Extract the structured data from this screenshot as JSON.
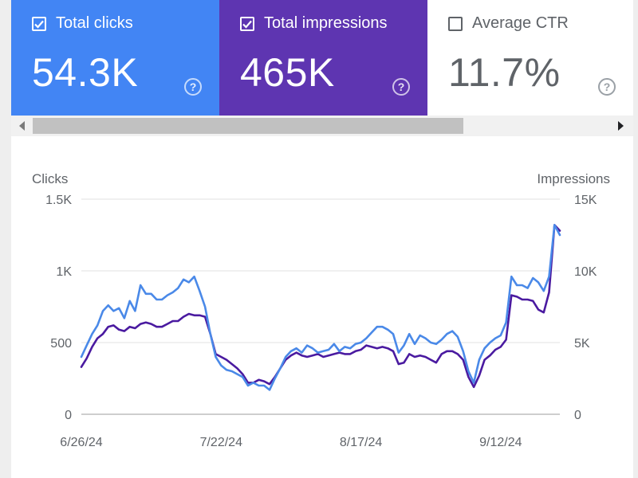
{
  "cards": [
    {
      "label": "Total clicks",
      "value": "54.3K",
      "checked": true,
      "color": "#4285f4"
    },
    {
      "label": "Total impressions",
      "value": "465K",
      "checked": true,
      "color": "#5e35b1"
    },
    {
      "label": "Average CTR",
      "value": "11.7%",
      "checked": false,
      "color": "#ffffff"
    }
  ],
  "help_symbol": "?",
  "chart_data": {
    "type": "line",
    "left_axis_label": "Clicks",
    "right_axis_label": "Impressions",
    "left_ticks": [
      "0",
      "500",
      "1K",
      "1.5K"
    ],
    "right_ticks": [
      "0",
      "5K",
      "10K",
      "15K"
    ],
    "x_tick_labels": [
      "6/26/24",
      "7/22/24",
      "8/17/24",
      "9/12/24"
    ],
    "x_tick_index": [
      0,
      26,
      52,
      78
    ],
    "ylim_left": [
      0,
      1500
    ],
    "ylim_right": [
      0,
      15000
    ],
    "grid": true,
    "series": [
      {
        "axis": "left",
        "color": "#4a89e8",
        "values": [
          400,
          480,
          560,
          620,
          720,
          760,
          720,
          740,
          670,
          790,
          720,
          900,
          840,
          840,
          800,
          800,
          830,
          850,
          880,
          940,
          920,
          960,
          860,
          750,
          560,
          400,
          340,
          310,
          300,
          280,
          260,
          200,
          220,
          200,
          200,
          170,
          250,
          320,
          400,
          440,
          460,
          430,
          480,
          460,
          430,
          440,
          450,
          490,
          440,
          470,
          460,
          490,
          500,
          530,
          570,
          610,
          610,
          590,
          560,
          430,
          480,
          560,
          490,
          550,
          530,
          500,
          490,
          520,
          560,
          580,
          540,
          440,
          300,
          220,
          380,
          460,
          500,
          530,
          550,
          640,
          960,
          900,
          900,
          880,
          950,
          920,
          860,
          960,
          1320,
          1250
        ]
      },
      {
        "axis": "right",
        "color": "#4a1aa0",
        "values": [
          3300,
          3900,
          4700,
          5300,
          5600,
          6100,
          6200,
          5900,
          5800,
          6100,
          6000,
          6300,
          6400,
          6300,
          6100,
          6100,
          6300,
          6500,
          6500,
          6800,
          7000,
          6900,
          6900,
          6800,
          5600,
          4200,
          4000,
          3800,
          3500,
          3200,
          2800,
          2200,
          2200,
          2400,
          2300,
          2100,
          2600,
          3200,
          3800,
          4100,
          4300,
          4100,
          4000,
          4100,
          4200,
          4000,
          4100,
          4200,
          4300,
          4200,
          4200,
          4400,
          4500,
          4800,
          4700,
          4600,
          4700,
          4600,
          4400,
          3500,
          3600,
          4200,
          4000,
          4100,
          4000,
          3800,
          3600,
          4200,
          4400,
          4400,
          4200,
          3800,
          2600,
          1900,
          2700,
          3800,
          4100,
          4500,
          4700,
          5200,
          8300,
          8200,
          8000,
          8000,
          7900,
          7300,
          7100,
          8500,
          13200,
          12800
        ]
      }
    ]
  }
}
